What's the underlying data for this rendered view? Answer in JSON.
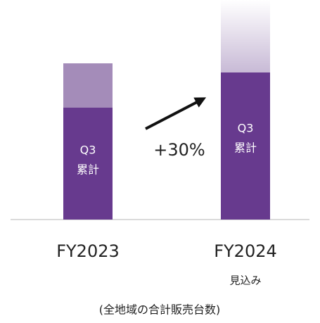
{
  "chart_data": {
    "type": "stacked-bar",
    "categories": [
      "FY2023",
      "FY2024"
    ],
    "category_notes": [
      null,
      "見込み"
    ],
    "series": [
      {
        "name": "Q3 累計",
        "color": "#673a8e",
        "values": [
          159,
          209
        ]
      },
      {
        "color": "#a48cb9",
        "values": [
          63,
          103
        ],
        "faded": [
          false,
          true
        ]
      }
    ],
    "ylim": [
      0,
      312
    ],
    "annotation": "+30%",
    "note": "(全地域の合計販売台数)"
  }
}
